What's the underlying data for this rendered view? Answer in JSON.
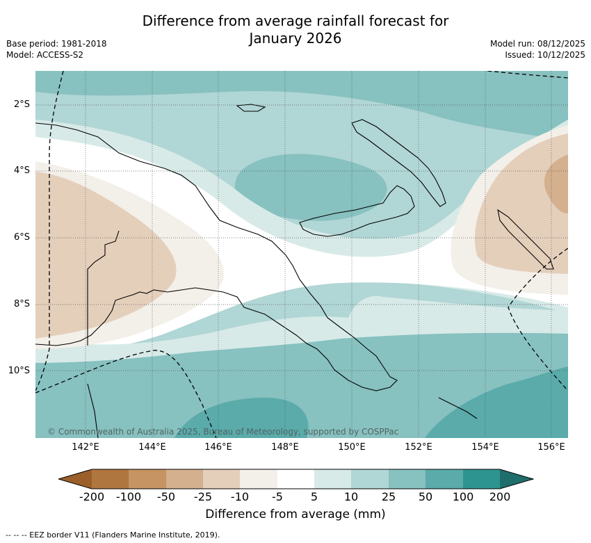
{
  "header": {
    "title_line1": "Difference from average rainfall forecast for",
    "title_line2": "January 2026",
    "base_period": "Base period: 1981-2018",
    "model": "Model: ACCESS-S2",
    "model_run": "Model run: 08/12/2025",
    "issued": "Issued: 10/12/2025"
  },
  "map": {
    "latitude_labels": [
      "2°S",
      "4°S",
      "6°S",
      "8°S",
      "10°S"
    ],
    "longitude_labels": [
      "142°E",
      "144°E",
      "146°E",
      "148°E",
      "150°E",
      "152°E",
      "154°E",
      "156°E"
    ],
    "credit": "© Commonwealth of Australia 2025, Bureau of Meteorology, supported by COSPPac"
  },
  "colorbar": {
    "labels": [
      "-200",
      "-100",
      "-50",
      "-25",
      "-10",
      "-5",
      "5",
      "10",
      "25",
      "50",
      "100",
      "200"
    ],
    "colors": [
      "#9b5f2a",
      "#b07640",
      "#c59462",
      "#d4b08e",
      "#e4cfbb",
      "#f3efe9",
      "#ffffff",
      "#d7eae8",
      "#b0d6d5",
      "#87c1c0",
      "#5aabaa",
      "#2e9490",
      "#1f6e6b"
    ],
    "title": "Difference from average (mm)"
  },
  "footnote": "--  --  -- EEZ border V11 (Flanders Marine Institute, 2019)."
}
